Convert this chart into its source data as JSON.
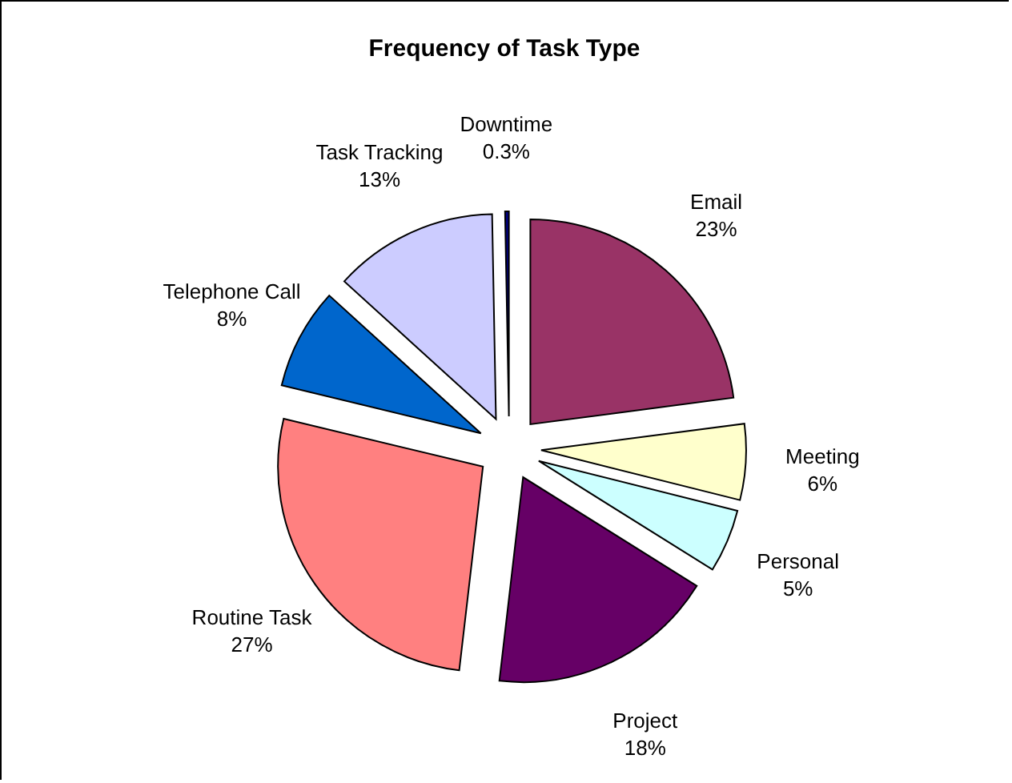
{
  "chart_data": {
    "type": "pie",
    "title": "Frequency of Task Type",
    "categories": [
      "Email",
      "Meeting",
      "Personal",
      "Project",
      "Routine Task",
      "Telephone Call",
      "Task Tracking",
      "Downtime"
    ],
    "values": [
      23,
      6,
      5,
      18,
      27,
      8,
      13,
      0.3
    ],
    "colors": [
      "#993366",
      "#ffffcc",
      "#ccffff",
      "#660066",
      "#ff8080",
      "#0066cc",
      "#ccccff",
      "#000080"
    ],
    "value_labels": [
      "23%",
      "6%",
      "5%",
      "18%",
      "27%",
      "8%",
      "13%",
      "0.3%"
    ]
  }
}
